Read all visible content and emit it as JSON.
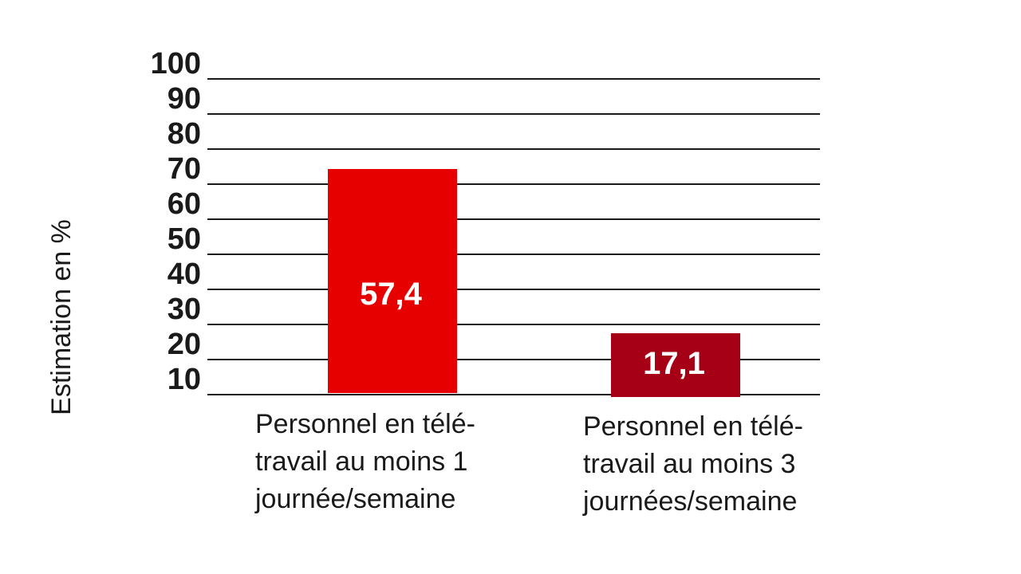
{
  "chart_data": {
    "type": "bar",
    "ylabel": "Estimation en %",
    "yticks": [
      "10",
      "20",
      "30",
      "40",
      "50",
      "60",
      "70",
      "80",
      "90",
      "100"
    ],
    "grid": true,
    "bars": [
      {
        "value": 57.4,
        "display_value": "57,4",
        "color": "#e60000",
        "label_lines": [
          "Personnel en télé-",
          "travail au moins 1",
          "journée/semaine"
        ]
      },
      {
        "value": 17.1,
        "display_value": "17,1",
        "color": "#a50016",
        "label_lines": [
          "Personnel en télé-",
          "travail au moins 3",
          "journées/semaine"
        ]
      }
    ]
  }
}
